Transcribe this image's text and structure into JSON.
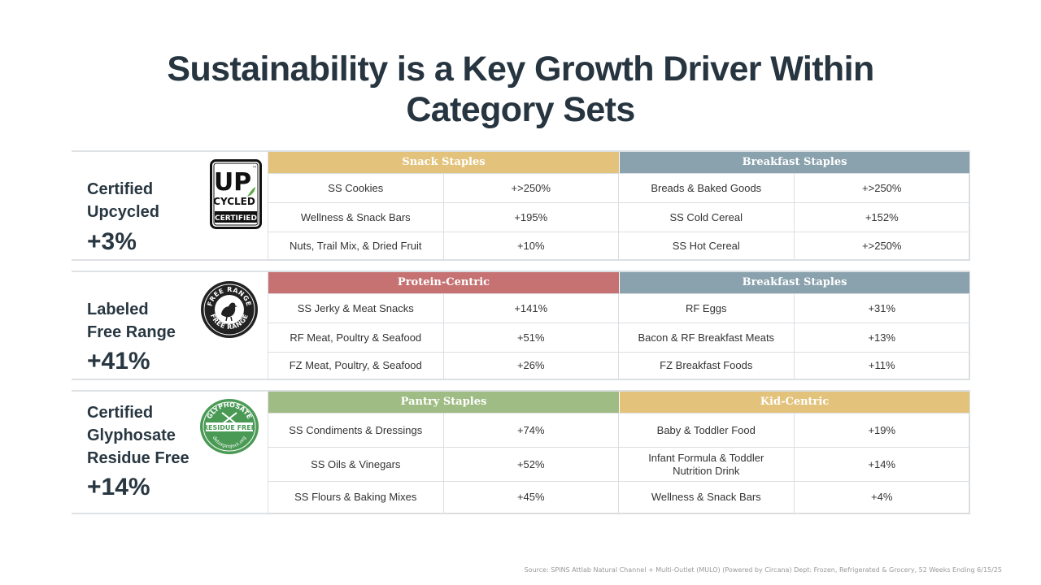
{
  "title_line1": "Sustainability is a Key Growth Driver Within",
  "title_line2": "Category Sets",
  "colors": {
    "snack": "#e3c37c",
    "breakfast": "#8aa2ad",
    "protein": "#c67273",
    "pantry": "#9fbc84",
    "kid": "#e3c37c"
  },
  "blocks": [
    {
      "label_line1": "Certified",
      "label_line2": "Upcycled",
      "pct": "+3%",
      "badge": {
        "line1": "UP",
        "line2": "CYCLED",
        "line3": "CERTIFIED",
        "tm": "™"
      },
      "headers": [
        "Snack Staples",
        "Breakfast Staples"
      ],
      "rows": [
        [
          "SS Cookies",
          "+>250%",
          "Breads & Baked Goods",
          "+>250%"
        ],
        [
          "Wellness & Snack Bars",
          "+195%",
          "SS Cold Cereal",
          "+152%"
        ],
        [
          "Nuts, Trail Mix, & Dried Fruit",
          "+10%",
          "SS Hot Cereal",
          "+>250%"
        ]
      ]
    },
    {
      "label_line1": "Labeled",
      "label_line2": "Free Range",
      "pct": "+41%",
      "badge": {
        "top": "FREE RANGE",
        "bottom": "FREE RANGE"
      },
      "headers": [
        "Protein-Centric",
        "Breakfast Staples"
      ],
      "rows": [
        [
          "SS Jerky & Meat Snacks",
          "+141%",
          "RF Eggs",
          "+31%"
        ],
        [
          "RF Meat, Poultry & Seafood",
          "+51%",
          "Bacon & RF Breakfast Meats",
          "+13%"
        ],
        [
          "FZ Meat, Poultry, & Seafood",
          "+26%",
          "FZ Breakfast Foods",
          "+11%"
        ]
      ]
    },
    {
      "label_line1": "Certified",
      "label_line2": "Glyphosate",
      "label_line3": "Residue Free",
      "pct": "+14%",
      "badge": {
        "top": "GLYPHOSATE",
        "middle": "RESIDUE FREE",
        "bottom": "detoxproject.org"
      },
      "headers": [
        "Pantry Staples",
        "Kid-Centric"
      ],
      "rows": [
        [
          "SS Condiments & Dressings",
          "+74%",
          "Baby & Toddler Food",
          "+19%"
        ],
        [
          "SS Oils & Vinegars",
          "+52%",
          "Infant Formula & Toddler Nutrition Drink",
          "+14%"
        ],
        [
          "SS Flours & Baking Mixes",
          "+45%",
          "Wellness & Snack Bars",
          "+4%"
        ]
      ]
    }
  ],
  "source": "Source: SPINS Attlab Natural Channel + Multi-Outlet (MULO) (Powered by Circana) Dept: Frozen, Refrigerated & Grocery, 52 Weeks Ending 6/15/25"
}
